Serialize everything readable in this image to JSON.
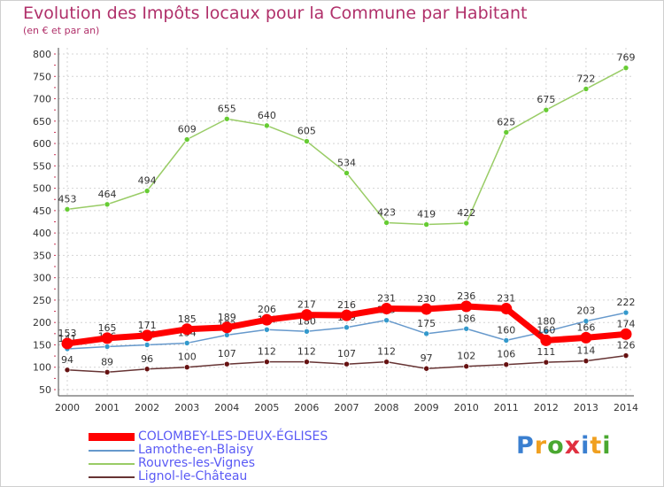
{
  "header": {
    "title": "Evolution des Impôts locaux pour la Commune par Habitant",
    "subtitle": "(en € et par an)"
  },
  "chart_data": {
    "type": "line",
    "title": "Evolution des Impôts locaux pour la Commune par Habitant",
    "ylabel": "(en € et par an)",
    "xlabel": "",
    "x": [
      2000,
      2001,
      2002,
      2003,
      2004,
      2005,
      2006,
      2007,
      2008,
      2009,
      2010,
      2011,
      2012,
      2013,
      2014
    ],
    "ylim": [
      50,
      800
    ],
    "yticks": [
      50,
      100,
      150,
      200,
      250,
      300,
      350,
      400,
      450,
      500,
      550,
      600,
      650,
      700,
      750,
      800
    ],
    "grid": true,
    "legend_position": "bottom-left",
    "series": [
      {
        "name": "Rouvres-les-Vignes",
        "color": "#99cc66",
        "marker": "#66cc33",
        "emphasis": false,
        "values": [
          453,
          464,
          494,
          609,
          655,
          640,
          605,
          534,
          423,
          419,
          422,
          625,
          675,
          722,
          769
        ]
      },
      {
        "name": "Lamothe-en-Blaisy",
        "color": "#6699cc",
        "marker": "#3399cc",
        "emphasis": false,
        "values": [
          141,
          146,
          150,
          154,
          172,
          184,
          180,
          189,
          205,
          175,
          186,
          160,
          180,
          203,
          222
        ]
      },
      {
        "name": "Lignol-le-Château",
        "color": "#663333",
        "marker": "#661111",
        "emphasis": false,
        "values": [
          94,
          89,
          96,
          100,
          107,
          112,
          112,
          107,
          112,
          97,
          102,
          106,
          111,
          114,
          126
        ]
      },
      {
        "name": "COLOMBEY-LES-DEUX-ÉGLISES",
        "color": "#ff0000",
        "marker": "#ff0000",
        "emphasis": true,
        "values": [
          153,
          165,
          171,
          185,
          189,
          206,
          217,
          216,
          231,
          230,
          236,
          231,
          160,
          166,
          174
        ]
      }
    ],
    "legend_order": [
      "COLOMBEY-LES-DEUX-ÉGLISES",
      "Lamothe-en-Blaisy",
      "Rouvres-les-Vignes",
      "Lignol-le-Château"
    ]
  },
  "logo": {
    "letters": [
      "P",
      "r",
      "o",
      "x",
      "i",
      "t",
      "i"
    ],
    "colors": [
      "#3a7fd0",
      "#f0a020",
      "#4aa830",
      "#e03040",
      "#3a7fd0",
      "#f0a020",
      "#4aa830"
    ]
  }
}
